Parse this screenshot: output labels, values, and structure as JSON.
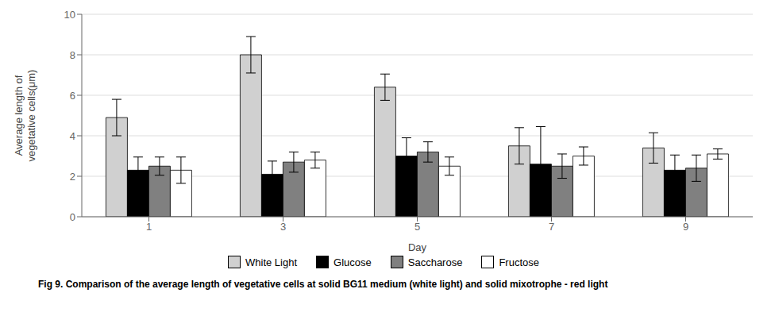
{
  "chart_data": {
    "type": "bar",
    "xlabel": "Day",
    "ylabel": "Average length of\nvegetative cells(μm)",
    "categories": [
      "1",
      "3",
      "5",
      "7",
      "9"
    ],
    "series": [
      {
        "name": "White Light",
        "color": "#d0d0d0",
        "values": [
          4.9,
          8.0,
          6.4,
          3.5,
          3.4
        ],
        "errors": [
          0.9,
          0.9,
          0.65,
          0.9,
          0.75
        ]
      },
      {
        "name": "Glucose",
        "color": "#000000",
        "values": [
          2.3,
          2.1,
          3.0,
          2.6,
          2.3
        ],
        "errors": [
          0.65,
          0.65,
          0.9,
          1.85,
          0.75
        ]
      },
      {
        "name": "Saccharose",
        "color": "#808080",
        "values": [
          2.5,
          2.7,
          3.2,
          2.5,
          2.4
        ],
        "errors": [
          0.45,
          0.5,
          0.5,
          0.6,
          0.65
        ]
      },
      {
        "name": "Fructose",
        "color": "#ffffff",
        "values": [
          2.3,
          2.8,
          2.5,
          3.0,
          3.1
        ],
        "errors": [
          0.65,
          0.4,
          0.45,
          0.45,
          0.25
        ]
      }
    ],
    "ylim": [
      0,
      10
    ],
    "yticks": [
      0,
      2,
      4,
      6,
      8,
      10
    ],
    "grid": true,
    "legend": "bottom",
    "annotations": [
      "Fig 9. Comparison of the average length of vegetative cells at solid BG11 medium (white light) and solid mixotrophe - red light"
    ]
  }
}
